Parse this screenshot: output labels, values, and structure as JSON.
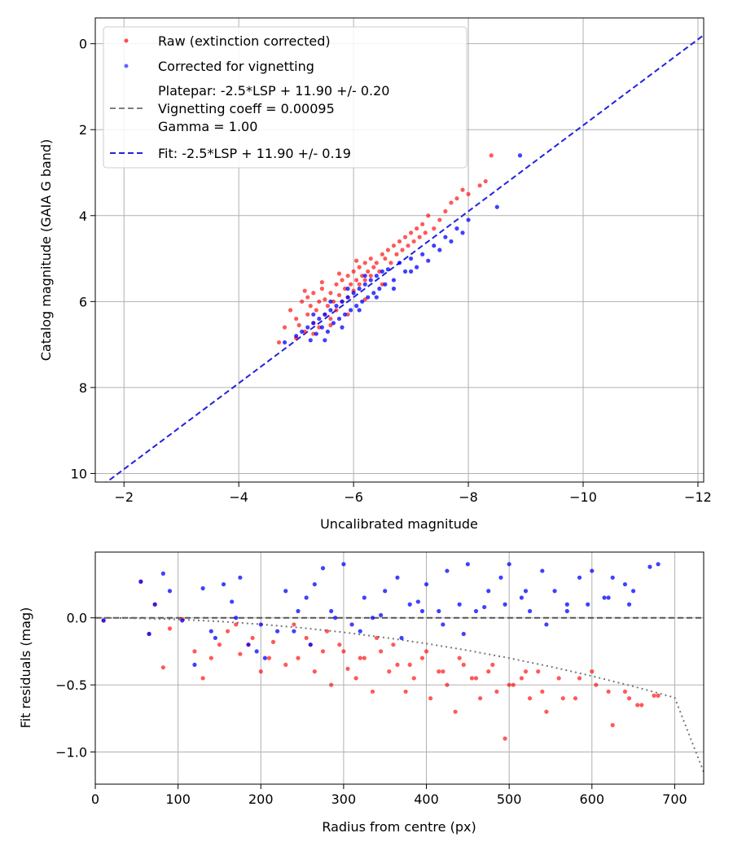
{
  "chart_data": [
    {
      "type": "scatter",
      "xlabel": "Uncalibrated magnitude",
      "ylabel": "Catalog magnitude (GAIA G band)",
      "xlim": [
        -1.5,
        -12.1
      ],
      "ylim": [
        10.2,
        -0.6
      ],
      "x_inverted": true,
      "y_inverted": true,
      "xticks": [
        -2,
        -4,
        -6,
        -8,
        -10,
        -12
      ],
      "xtick_labels": [
        "−2",
        "−4",
        "−6",
        "−8",
        "−10",
        "−12"
      ],
      "yticks": [
        0,
        2,
        4,
        6,
        8,
        10
      ],
      "ytick_labels": [
        "0",
        "2",
        "4",
        "6",
        "8",
        "10"
      ],
      "grid": true,
      "legend_placement": "top-left",
      "legend": [
        {
          "label": "Raw (extinction corrected)",
          "kind": "marker",
          "color": "#ff0000"
        },
        {
          "label": "Corrected for vignetting",
          "kind": "marker",
          "color": "#0000ff"
        },
        {
          "label_lines": [
            "Platepar: -2.5*LSP + 11.90 +/- 0.20",
            "Vignetting coeff = 0.00095",
            "Gamma = 1.00"
          ],
          "kind": "dashed-line",
          "color": "#808080"
        },
        {
          "label": "Fit: -2.5*LSP + 11.90 +/- 0.19",
          "kind": "dashed-line",
          "color": "#2222dd"
        }
      ],
      "series": [
        {
          "name": "Raw (extinction corrected)",
          "color": "#ff0000",
          "x": [
            -4.7,
            -4.8,
            -4.9,
            -5.0,
            -5.05,
            -5.1,
            -5.15,
            -5.2,
            -5.2,
            -5.25,
            -5.3,
            -5.3,
            -5.35,
            -5.4,
            -5.4,
            -5.45,
            -5.5,
            -5.5,
            -5.55,
            -5.6,
            -5.6,
            -5.65,
            -5.7,
            -5.7,
            -5.75,
            -5.8,
            -5.8,
            -5.85,
            -5.9,
            -5.9,
            -5.95,
            -6.0,
            -6.0,
            -6.05,
            -6.1,
            -6.1,
            -6.15,
            -6.2,
            -6.2,
            -6.25,
            -6.3,
            -6.3,
            -6.35,
            -6.4,
            -6.45,
            -6.5,
            -6.55,
            -6.6,
            -6.65,
            -6.7,
            -6.75,
            -6.8,
            -6.85,
            -6.9,
            -6.95,
            -7.0,
            -7.05,
            -7.1,
            -7.15,
            -7.2,
            -7.25,
            -7.3,
            -7.4,
            -7.5,
            -7.6,
            -7.7,
            -7.8,
            -7.9,
            -8.0,
            -8.2,
            -8.4,
            -8.3,
            -5.0,
            -5.3,
            -5.6,
            -5.9,
            -6.2,
            -6.5,
            -5.15,
            -5.45,
            -5.75,
            -6.05
          ],
          "y": [
            6.95,
            6.6,
            6.2,
            6.4,
            6.55,
            6.0,
            6.7,
            6.3,
            5.9,
            6.1,
            6.5,
            5.8,
            6.2,
            6.0,
            6.6,
            5.7,
            6.3,
            5.95,
            6.1,
            5.8,
            6.4,
            6.0,
            5.6,
            6.2,
            5.85,
            5.5,
            6.0,
            5.7,
            5.4,
            5.9,
            5.6,
            5.3,
            5.75,
            5.5,
            5.2,
            5.6,
            5.4,
            5.1,
            5.5,
            5.3,
            5.0,
            5.4,
            5.2,
            5.1,
            5.3,
            4.9,
            5.0,
            4.8,
            5.1,
            4.7,
            4.9,
            4.6,
            4.8,
            4.5,
            4.7,
            4.4,
            4.6,
            4.3,
            4.5,
            4.2,
            4.4,
            4.0,
            4.3,
            4.1,
            3.9,
            3.7,
            3.6,
            3.4,
            3.5,
            3.3,
            2.6,
            3.2,
            6.85,
            6.75,
            6.55,
            6.3,
            5.95,
            5.6,
            5.75,
            5.55,
            5.35,
            5.05
          ]
        },
        {
          "name": "Corrected for vignetting",
          "color": "#0000ff",
          "x": [
            -4.8,
            -5.0,
            -5.1,
            -5.2,
            -5.25,
            -5.3,
            -5.35,
            -5.4,
            -5.45,
            -5.5,
            -5.55,
            -5.6,
            -5.65,
            -5.7,
            -5.75,
            -5.8,
            -5.85,
            -5.9,
            -5.95,
            -6.0,
            -6.05,
            -6.1,
            -6.15,
            -6.2,
            -6.25,
            -6.3,
            -6.35,
            -6.4,
            -6.45,
            -6.5,
            -6.55,
            -6.6,
            -6.7,
            -6.8,
            -6.9,
            -7.0,
            -7.1,
            -7.2,
            -7.3,
            -7.4,
            -7.5,
            -7.6,
            -7.7,
            -7.8,
            -7.9,
            -8.0,
            -8.5,
            -8.9,
            -5.5,
            -5.8,
            -6.1,
            -6.4,
            -6.7,
            -7.0,
            -5.3,
            -5.6,
            -5.9,
            -6.2
          ],
          "y": [
            6.95,
            6.8,
            6.7,
            6.6,
            6.9,
            6.5,
            6.75,
            6.4,
            6.6,
            6.3,
            6.7,
            6.2,
            6.5,
            6.1,
            6.4,
            6.0,
            6.3,
            5.9,
            6.2,
            5.8,
            6.1,
            5.7,
            6.0,
            5.6,
            5.9,
            5.5,
            5.8,
            5.4,
            5.7,
            5.3,
            5.6,
            5.25,
            5.5,
            5.1,
            5.3,
            5.0,
            5.2,
            4.9,
            5.05,
            4.7,
            4.8,
            4.5,
            4.6,
            4.3,
            4.4,
            4.1,
            3.8,
            2.6,
            6.9,
            6.6,
            6.2,
            5.9,
            5.7,
            5.3,
            6.3,
            6.0,
            5.7,
            5.4
          ]
        },
        {
          "name": "Fit: -2.5*LSP + 11.90 +/- 0.19",
          "kind": "line",
          "color": "#2222dd",
          "x": [
            -1.5,
            -12.1
          ],
          "y": [
            10.4,
            -0.2
          ]
        }
      ]
    },
    {
      "type": "scatter",
      "xlabel": "Radius from centre (px)",
      "ylabel": "Fit residuals (mag)",
      "xlim": [
        0,
        735
      ],
      "ylim": [
        -1.24,
        0.49
      ],
      "xticks": [
        0,
        100,
        200,
        300,
        400,
        500,
        600,
        700
      ],
      "xtick_labels": [
        "0",
        "100",
        "200",
        "300",
        "400",
        "500",
        "600",
        "700"
      ],
      "yticks": [
        0.0,
        -0.5,
        -1.0
      ],
      "ytick_labels": [
        "0.0",
        "−0.5",
        "−1.0"
      ],
      "grid": true,
      "series": [
        {
          "name": "Raw (extinction corrected)",
          "color": "#ff0000",
          "x": [
            10,
            55,
            65,
            72,
            82,
            90,
            105,
            130,
            140,
            160,
            175,
            185,
            200,
            215,
            230,
            245,
            255,
            265,
            275,
            285,
            295,
            305,
            315,
            325,
            335,
            345,
            355,
            365,
            375,
            385,
            395,
            405,
            415,
            425,
            435,
            445,
            455,
            465,
            475,
            485,
            495,
            505,
            515,
            525,
            535,
            545,
            565,
            585,
            605,
            625,
            640,
            655,
            680,
            120,
            150,
            170,
            190,
            210,
            240,
            260,
            280,
            300,
            320,
            340,
            360,
            380,
            400,
            420,
            440,
            460,
            480,
            500,
            520,
            540,
            560,
            580,
            600,
            620,
            645,
            660,
            675
          ],
          "y": [
            -0.02,
            0.27,
            -0.12,
            0.1,
            -0.37,
            -0.08,
            -0.01,
            -0.45,
            -0.3,
            -0.1,
            -0.27,
            -0.2,
            -0.4,
            -0.18,
            -0.35,
            -0.3,
            -0.15,
            -0.4,
            -0.25,
            -0.5,
            -0.2,
            -0.38,
            -0.45,
            -0.3,
            -0.55,
            -0.25,
            -0.4,
            -0.35,
            -0.55,
            -0.45,
            -0.3,
            -0.6,
            -0.4,
            -0.5,
            -0.7,
            -0.35,
            -0.45,
            -0.6,
            -0.4,
            -0.55,
            -0.9,
            -0.5,
            -0.45,
            -0.6,
            -0.4,
            -0.7,
            -0.6,
            -0.45,
            -0.5,
            -0.8,
            -0.55,
            -0.65,
            -0.58,
            -0.25,
            -0.2,
            -0.05,
            -0.15,
            -0.3,
            -0.05,
            -0.2,
            -0.1,
            -0.25,
            -0.3,
            -0.15,
            -0.2,
            -0.35,
            -0.25,
            -0.4,
            -0.3,
            -0.45,
            -0.35,
            -0.5,
            -0.4,
            -0.55,
            -0.45,
            -0.6,
            -0.4,
            -0.55,
            -0.6,
            -0.65,
            -0.58
          ]
        },
        {
          "name": "Corrected for vignetting",
          "color": "#0000ff",
          "x": [
            10,
            55,
            65,
            72,
            82,
            90,
            105,
            130,
            140,
            155,
            165,
            175,
            195,
            205,
            230,
            240,
            255,
            265,
            275,
            285,
            300,
            310,
            325,
            335,
            350,
            365,
            380,
            390,
            400,
            415,
            425,
            440,
            450,
            460,
            475,
            490,
            500,
            515,
            525,
            540,
            555,
            570,
            585,
            600,
            615,
            625,
            640,
            650,
            680,
            120,
            145,
            170,
            185,
            200,
            220,
            245,
            260,
            290,
            320,
            345,
            370,
            395,
            420,
            445,
            470,
            495,
            520,
            545,
            570,
            595,
            620,
            645,
            670
          ],
          "y": [
            -0.02,
            0.27,
            -0.12,
            0.1,
            0.33,
            0.2,
            -0.02,
            0.22,
            -0.1,
            0.25,
            0.12,
            0.3,
            -0.25,
            -0.3,
            0.2,
            -0.1,
            0.15,
            0.25,
            0.37,
            0.05,
            0.4,
            -0.05,
            0.15,
            0.0,
            0.2,
            0.3,
            0.1,
            0.12,
            0.25,
            0.05,
            0.35,
            0.1,
            0.4,
            0.05,
            0.2,
            0.3,
            0.4,
            0.15,
            0.05,
            0.35,
            0.2,
            0.1,
            0.3,
            0.35,
            0.15,
            0.3,
            0.25,
            0.2,
            0.4,
            -0.35,
            -0.15,
            0.0,
            -0.2,
            -0.05,
            -0.1,
            0.05,
            -0.2,
            0.0,
            -0.1,
            0.02,
            -0.15,
            0.05,
            -0.05,
            -0.12,
            0.08,
            0.1,
            0.2,
            -0.05,
            0.05,
            0.1,
            0.15,
            0.1,
            0.38
          ]
        },
        {
          "name": "zero",
          "kind": "line",
          "style": "dashed",
          "color": "#555555",
          "x": [
            0,
            735
          ],
          "y": [
            0,
            0
          ]
        },
        {
          "name": "vignetting model",
          "kind": "line",
          "style": "dotted",
          "color": "#777777",
          "x": [
            0,
            50,
            100,
            150,
            200,
            250,
            300,
            350,
            400,
            450,
            500,
            550,
            600,
            650,
            700,
            735
          ],
          "y": [
            0.0,
            -0.003,
            -0.012,
            -0.027,
            -0.048,
            -0.075,
            -0.108,
            -0.147,
            -0.192,
            -0.243,
            -0.3,
            -0.364,
            -0.434,
            -0.511,
            -0.595,
            -1.15
          ]
        }
      ]
    }
  ]
}
